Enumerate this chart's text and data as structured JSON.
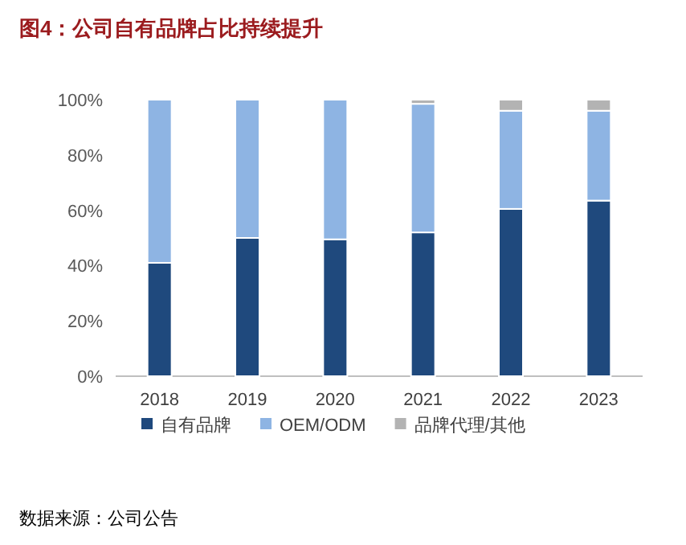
{
  "chart_data": {
    "type": "bar",
    "stacked": true,
    "title": "图4：公司自有品牌占比持续提升",
    "categories": [
      "2018",
      "2019",
      "2020",
      "2021",
      "2022",
      "2023"
    ],
    "series": [
      {
        "name": "自有品牌",
        "color": "#1f497d",
        "values": [
          41,
          50,
          49.5,
          52,
          60.5,
          63.5
        ]
      },
      {
        "name": "OEM/ODM",
        "color": "#8eb4e3",
        "values": [
          59,
          50,
          50.5,
          46.5,
          35.5,
          32.5
        ]
      },
      {
        "name": "品牌代理/其他",
        "color": "#b3b3b3",
        "values": [
          null,
          null,
          null,
          1.5,
          4,
          4
        ]
      }
    ],
    "ylim": [
      0,
      100
    ],
    "yticks": [
      {
        "value": 0,
        "label": "0%"
      },
      {
        "value": 20,
        "label": "20%"
      },
      {
        "value": 40,
        "label": "40%"
      },
      {
        "value": 60,
        "label": "60%"
      },
      {
        "value": 80,
        "label": "80%"
      },
      {
        "value": 100,
        "label": "100%"
      }
    ],
    "grid": false,
    "legend": "bottom",
    "annotations": [
      "数据来源：公司公告"
    ]
  }
}
